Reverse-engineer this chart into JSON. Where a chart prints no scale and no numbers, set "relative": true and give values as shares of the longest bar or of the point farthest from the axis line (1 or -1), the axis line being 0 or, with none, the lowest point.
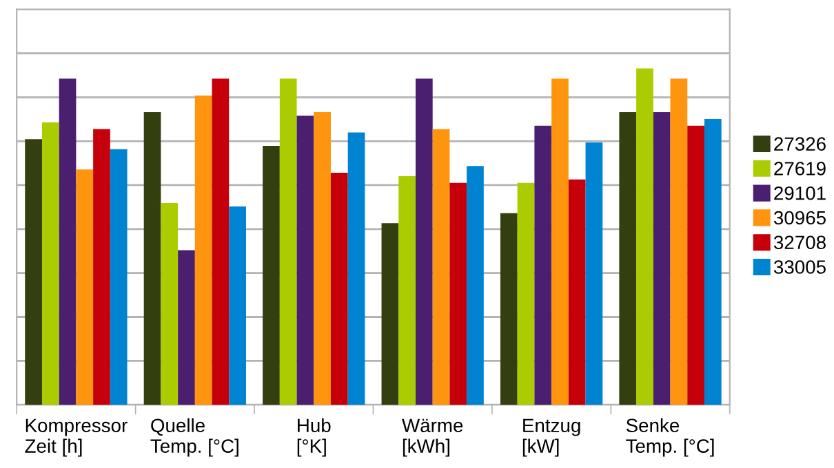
{
  "chart_data": {
    "type": "bar",
    "relative": true,
    "grid": "y",
    "legend": "right",
    "categories": [
      "Kompressor\nZeit [h]",
      "Quelle\nTemp. [°C]",
      "Hub\n[°K]",
      "Wärme\n[kWh]",
      "Entzug\n[kW]",
      "Senke\nTemp. [°C]"
    ],
    "series": [
      {
        "name": "27326",
        "color": "#333f0f",
        "values": [
          0.79,
          0.87,
          0.77,
          0.54,
          0.57,
          0.87
        ]
      },
      {
        "name": "27619",
        "color": "#aacc00",
        "values": [
          0.84,
          0.6,
          0.97,
          0.68,
          0.66,
          1
        ]
      },
      {
        "name": "29101",
        "color": "#4b1f6f",
        "values": [
          0.97,
          0.46,
          0.86,
          0.97,
          0.83,
          0.87
        ]
      },
      {
        "name": "30965",
        "color": "#ff950e",
        "values": [
          0.7,
          0.92,
          0.87,
          0.82,
          0.97,
          0.97
        ]
      },
      {
        "name": "32708",
        "color": "#c5000b",
        "values": [
          0.82,
          0.97,
          0.69,
          0.66,
          0.67,
          0.83
        ]
      },
      {
        "name": "33005",
        "color": "#0084d1",
        "values": [
          0.76,
          0.59,
          0.81,
          0.71,
          0.78,
          0.85
        ]
      }
    ]
  }
}
